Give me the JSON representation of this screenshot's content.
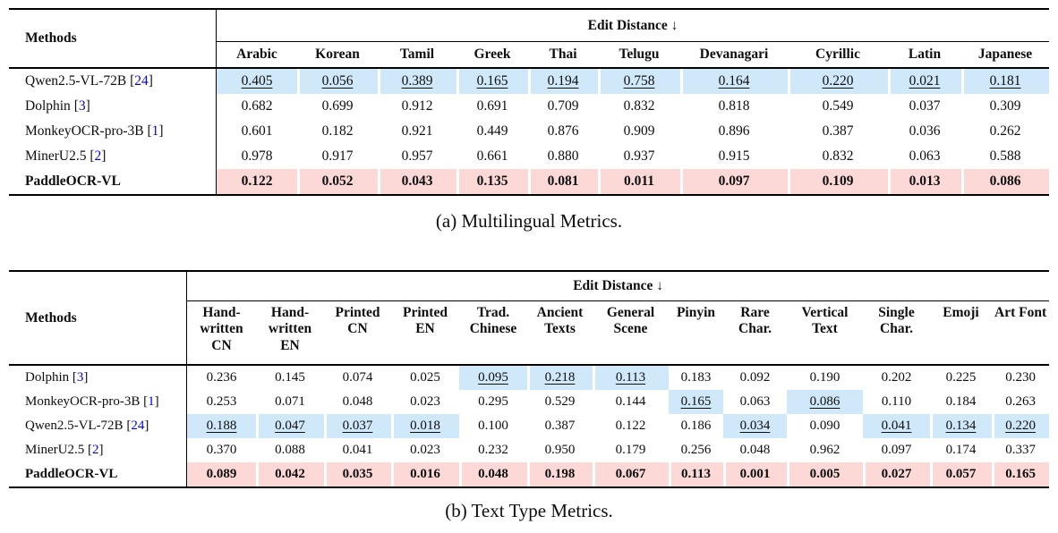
{
  "colors": {
    "highlight_blue": "#cfe8fa",
    "highlight_pink": "#fcd8d6",
    "citation_blue": "#0000ee",
    "text": "#0e0e0e"
  },
  "captions": {
    "a": "(a) Multilingual Metrics.",
    "b": "(b) Text Type Metrics."
  },
  "table_a": {
    "methods_header": "Methods",
    "group_header": "Edit Distance ↓",
    "columns": [
      "Arabic",
      "Korean",
      "Tamil",
      "Greek",
      "Thai",
      "Telugu",
      "Devanagari",
      "Cyrillic",
      "Latin",
      "Japanese"
    ],
    "rows": [
      {
        "method": "Qwen2.5-VL-72B",
        "cite": "24",
        "style": "second-best",
        "values": [
          "0.405",
          "0.056",
          "0.389",
          "0.165",
          "0.194",
          "0.758",
          "0.164",
          "0.220",
          "0.021",
          "0.181"
        ],
        "marks": [
          1,
          1,
          1,
          1,
          1,
          1,
          1,
          1,
          1,
          1
        ]
      },
      {
        "method": "Dolphin",
        "cite": "3",
        "style": "plain",
        "values": [
          "0.682",
          "0.699",
          "0.912",
          "0.691",
          "0.709",
          "0.832",
          "0.818",
          "0.549",
          "0.037",
          "0.309"
        ]
      },
      {
        "method": "MonkeyOCR-pro-3B",
        "cite": "1",
        "style": "plain",
        "values": [
          "0.601",
          "0.182",
          "0.921",
          "0.449",
          "0.876",
          "0.909",
          "0.896",
          "0.387",
          "0.036",
          "0.262"
        ]
      },
      {
        "method": "MinerU2.5",
        "cite": "2",
        "style": "plain",
        "values": [
          "0.978",
          "0.917",
          "0.957",
          "0.661",
          "0.880",
          "0.937",
          "0.915",
          "0.832",
          "0.063",
          "0.588"
        ]
      },
      {
        "method": "PaddleOCR-VL",
        "cite": null,
        "style": "best",
        "values": [
          "0.122",
          "0.052",
          "0.043",
          "0.135",
          "0.081",
          "0.011",
          "0.097",
          "0.109",
          "0.013",
          "0.086"
        ]
      }
    ]
  },
  "table_b": {
    "methods_header": "Methods",
    "group_header": "Edit Distance ↓",
    "columns": [
      "Hand-written CN",
      "Hand-written EN",
      "Printed CN",
      "Printed EN",
      "Trad. Chinese",
      "Ancient Texts",
      "General Scene",
      "Pinyin",
      "Rare Char.",
      "Vertical Text",
      "Single Char.",
      "Emoji",
      "Art Font"
    ],
    "rows": [
      {
        "method": "Dolphin",
        "cite": "3",
        "style": "plain",
        "values": [
          "0.236",
          "0.145",
          "0.074",
          "0.025",
          "0.095",
          "0.218",
          "0.113",
          "0.183",
          "0.092",
          "0.190",
          "0.202",
          "0.225",
          "0.230"
        ],
        "marks": [
          0,
          0,
          0,
          0,
          1,
          1,
          1,
          0,
          0,
          0,
          0,
          0,
          0
        ]
      },
      {
        "method": "MonkeyOCR-pro-3B",
        "cite": "1",
        "style": "plain",
        "values": [
          "0.253",
          "0.071",
          "0.048",
          "0.023",
          "0.295",
          "0.529",
          "0.144",
          "0.165",
          "0.063",
          "0.086",
          "0.110",
          "0.184",
          "0.263"
        ],
        "marks": [
          0,
          0,
          0,
          0,
          0,
          0,
          0,
          1,
          0,
          1,
          0,
          0,
          0
        ]
      },
      {
        "method": "Qwen2.5-VL-72B",
        "cite": "24",
        "style": "plain",
        "values": [
          "0.188",
          "0.047",
          "0.037",
          "0.018",
          "0.100",
          "0.387",
          "0.122",
          "0.186",
          "0.034",
          "0.090",
          "0.041",
          "0.134",
          "0.220"
        ],
        "marks": [
          1,
          1,
          1,
          1,
          0,
          0,
          0,
          0,
          1,
          0,
          1,
          1,
          1
        ]
      },
      {
        "method": "MinerU2.5",
        "cite": "2",
        "style": "plain",
        "values": [
          "0.370",
          "0.088",
          "0.041",
          "0.023",
          "0.232",
          "0.950",
          "0.179",
          "0.256",
          "0.048",
          "0.962",
          "0.097",
          "0.174",
          "0.337"
        ]
      },
      {
        "method": "PaddleOCR-VL",
        "cite": null,
        "style": "best",
        "values": [
          "0.089",
          "0.042",
          "0.035",
          "0.016",
          "0.048",
          "0.198",
          "0.067",
          "0.113",
          "0.001",
          "0.005",
          "0.027",
          "0.057",
          "0.165"
        ]
      }
    ]
  }
}
